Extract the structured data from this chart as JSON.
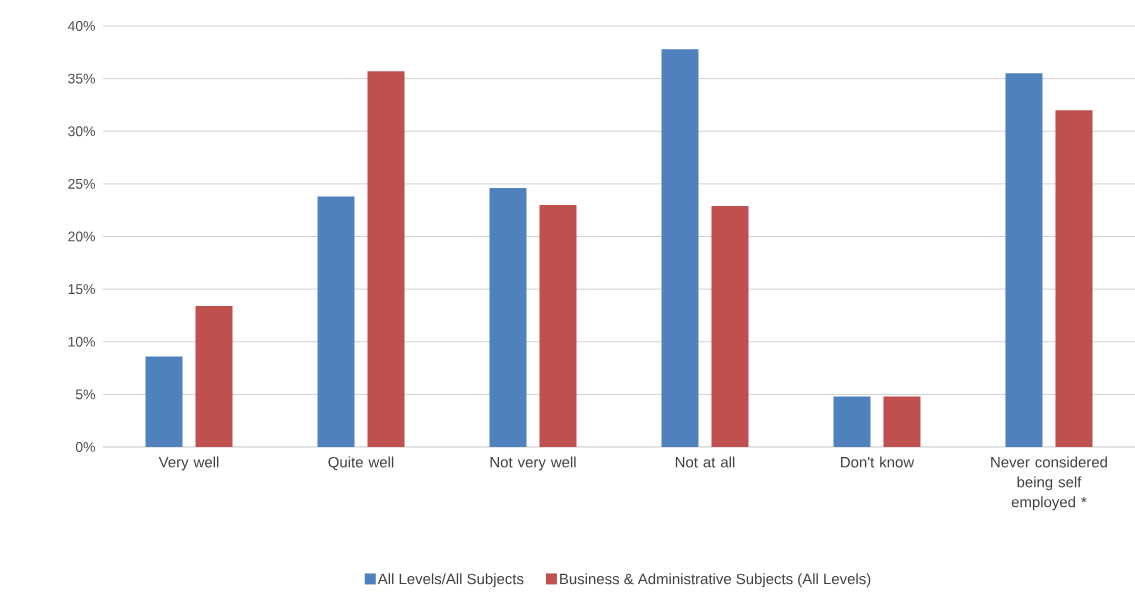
{
  "chart_data": {
    "type": "bar",
    "categories": [
      "Very well",
      "Quite well",
      "Not very well",
      "Not at all",
      "Don't know",
      "Never considered being self employed *"
    ],
    "series": [
      {
        "name": "All Levels/All Subjects",
        "color": "#4f81bd",
        "values": [
          8.6,
          23.8,
          24.6,
          37.8,
          4.8,
          35.5
        ]
      },
      {
        "name": "Business & Administrative Subjects (All Levels)",
        "color": "#c0504d",
        "values": [
          13.4,
          35.7,
          23.0,
          22.9,
          4.8,
          32.0
        ]
      }
    ],
    "ylim": [
      0,
      40
    ],
    "yticks": [
      {
        "value": 0,
        "label": "0%"
      },
      {
        "value": 5,
        "label": "5%"
      },
      {
        "value": 10,
        "label": "10%"
      },
      {
        "value": 15,
        "label": "15%"
      },
      {
        "value": 20,
        "label": "20%"
      },
      {
        "value": 25,
        "label": "25%"
      },
      {
        "value": 30,
        "label": "30%"
      },
      {
        "value": 35,
        "label": "35%"
      },
      {
        "value": 40,
        "label": "40%"
      }
    ],
    "grid": "y",
    "legend": "bottom"
  }
}
